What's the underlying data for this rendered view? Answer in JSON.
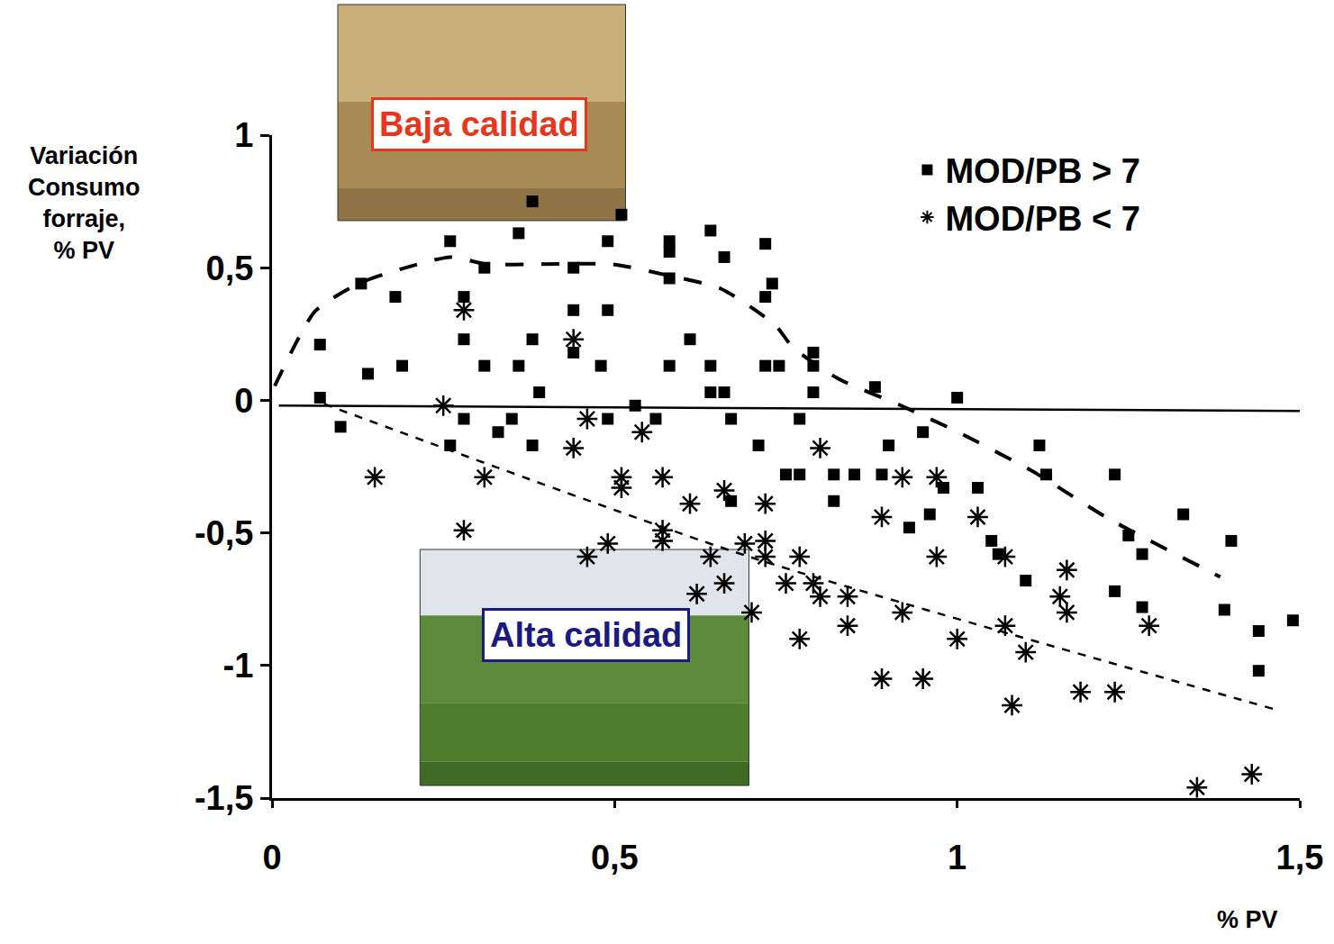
{
  "chart_data": {
    "type": "scatter",
    "y_label": "Variación Consumo forraje, % PV",
    "x_label": "% PV",
    "xlim": [
      0,
      1.5
    ],
    "xticks": [
      0,
      {
        "value": 0.5,
        "label": "0,5"
      },
      1,
      {
        "value": 1.5,
        "label": "1,5"
      }
    ],
    "ylim": [
      -1.5,
      1
    ],
    "yticks": [
      {
        "value": -1.5,
        "label": "-1,5"
      },
      -1,
      {
        "value": -0.5,
        "label": "-0,5"
      },
      0,
      {
        "value": 0.5,
        "label": "0,5"
      },
      1
    ],
    "grid": false,
    "legend": "top right",
    "annotations": [
      {
        "text": "Baja calidad",
        "color": "#e8361c"
      },
      {
        "text": "Alta calidad",
        "color": "#1a1a80"
      }
    ],
    "series": [
      {
        "name": "MOD/PB > 7",
        "type": "scatter",
        "marker": "square",
        "color": "#000000",
        "x": [
          0.07,
          0.07,
          0.1,
          0.13,
          0.18,
          0.14,
          0.19,
          0.26,
          0.28,
          0.28,
          0.26,
          0.28,
          0.31,
          0.31,
          0.33,
          0.35,
          0.36,
          0.38,
          0.38,
          0.38,
          0.36,
          0.39,
          0.44,
          0.44,
          0.44,
          0.48,
          0.49,
          0.49,
          0.51,
          0.49,
          0.53,
          0.56,
          0.58,
          0.58,
          0.58,
          0.58,
          0.61,
          0.64,
          0.64,
          0.64,
          0.66,
          0.66,
          0.67,
          0.67,
          0.71,
          0.72,
          0.72,
          0.72,
          0.73,
          0.74,
          0.75,
          0.77,
          0.77,
          0.79,
          0.79,
          0.79,
          0.82,
          0.82,
          0.85,
          0.89,
          0.88,
          0.9,
          0.93,
          0.95,
          0.96,
          0.98,
          1.0,
          1.03,
          1.05,
          1.06,
          1.1,
          1.12,
          1.13,
          1.23,
          1.25,
          1.23,
          1.27,
          1.27,
          1.33,
          1.4,
          1.39,
          1.44,
          1.44,
          1.49
        ],
        "values": [
          0.21,
          0.01,
          -0.1,
          0.44,
          0.39,
          0.1,
          0.13,
          0.6,
          0.39,
          0.23,
          -0.17,
          -0.07,
          0.5,
          0.13,
          -0.12,
          -0.07,
          0.13,
          0.75,
          0.23,
          -0.17,
          0.63,
          0.03,
          0.5,
          0.34,
          0.18,
          0.13,
          0.34,
          0.6,
          0.7,
          -0.07,
          -0.02,
          -0.07,
          0.6,
          0.56,
          0.46,
          0.13,
          0.23,
          0.64,
          0.13,
          0.03,
          0.03,
          0.54,
          -0.07,
          -0.38,
          -0.17,
          0.13,
          0.59,
          0.39,
          0.44,
          0.13,
          -0.28,
          -0.28,
          -0.07,
          0.18,
          0.13,
          0.03,
          -0.28,
          -0.38,
          -0.28,
          -0.28,
          0.05,
          -0.17,
          -0.48,
          -0.12,
          -0.43,
          -0.33,
          0.01,
          -0.33,
          -0.53,
          -0.58,
          -0.68,
          -0.17,
          -0.28,
          -0.28,
          -0.51,
          -0.72,
          -0.58,
          -0.78,
          -0.43,
          -0.53,
          -0.79,
          -0.87,
          -1.02,
          -0.83
        ]
      },
      {
        "name": "MOD/PB < 7",
        "type": "scatter",
        "marker": "asterisk",
        "color": "#000000",
        "x": [
          0.15,
          0.25,
          0.28,
          0.28,
          0.31,
          0.44,
          0.44,
          0.46,
          0.46,
          0.49,
          0.51,
          0.51,
          0.54,
          0.57,
          0.57,
          0.57,
          0.61,
          0.64,
          0.66,
          0.66,
          0.62,
          0.69,
          0.7,
          0.72,
          0.72,
          0.72,
          0.75,
          0.77,
          0.77,
          0.79,
          0.8,
          0.8,
          0.84,
          0.84,
          0.89,
          0.89,
          0.92,
          0.92,
          0.95,
          0.97,
          0.97,
          1.0,
          1.03,
          1.07,
          1.07,
          1.1,
          1.08,
          1.15,
          1.16,
          1.16,
          1.18,
          1.23,
          1.28,
          1.35,
          1.43
        ],
        "values": [
          -0.29,
          -0.02,
          0.34,
          -0.49,
          -0.29,
          0.23,
          -0.18,
          -0.07,
          -0.59,
          -0.54,
          -0.29,
          -0.33,
          -0.12,
          -0.29,
          -0.49,
          -0.53,
          -0.39,
          -0.59,
          -0.34,
          -0.69,
          -0.73,
          -0.54,
          -0.8,
          -0.39,
          -0.53,
          -0.59,
          -0.69,
          -0.59,
          -0.9,
          -0.69,
          -0.18,
          -0.74,
          -0.74,
          -0.85,
          -0.44,
          -1.05,
          -0.29,
          -0.8,
          -1.05,
          -0.29,
          -0.59,
          -0.9,
          -0.44,
          -0.59,
          -0.85,
          -0.95,
          -1.15,
          -0.74,
          -0.64,
          -0.8,
          -1.1,
          -1.1,
          -0.85,
          -1.46,
          -1.41
        ]
      },
      {
        "type": "line",
        "line_style": "longdash",
        "color": "#000000",
        "x": [
          0.004,
          0.063,
          0.131,
          0.26,
          0.313,
          0.392,
          0.497,
          0.576,
          0.655,
          0.734,
          0.76,
          0.826,
          0.918,
          1.003,
          1.115,
          1.22,
          1.384
        ],
        "values": [
          0.054,
          0.336,
          0.445,
          0.54,
          0.513,
          0.513,
          0.513,
          0.472,
          0.421,
          0.285,
          0.2,
          0.082,
          -0.02,
          -0.122,
          -0.275,
          -0.445,
          -0.666
        ]
      },
      {
        "type": "line",
        "line_style": "dashed",
        "color": "#000000",
        "x": [
          0.076,
          0.694,
          1.47
        ],
        "values": [
          -0.014,
          -0.588,
          -1.17
        ]
      },
      {
        "type": "line",
        "line_style": "solid",
        "color": "#000000",
        "x": [
          0.01,
          1.5
        ],
        "values": [
          -0.02,
          -0.04
        ]
      }
    ]
  }
}
